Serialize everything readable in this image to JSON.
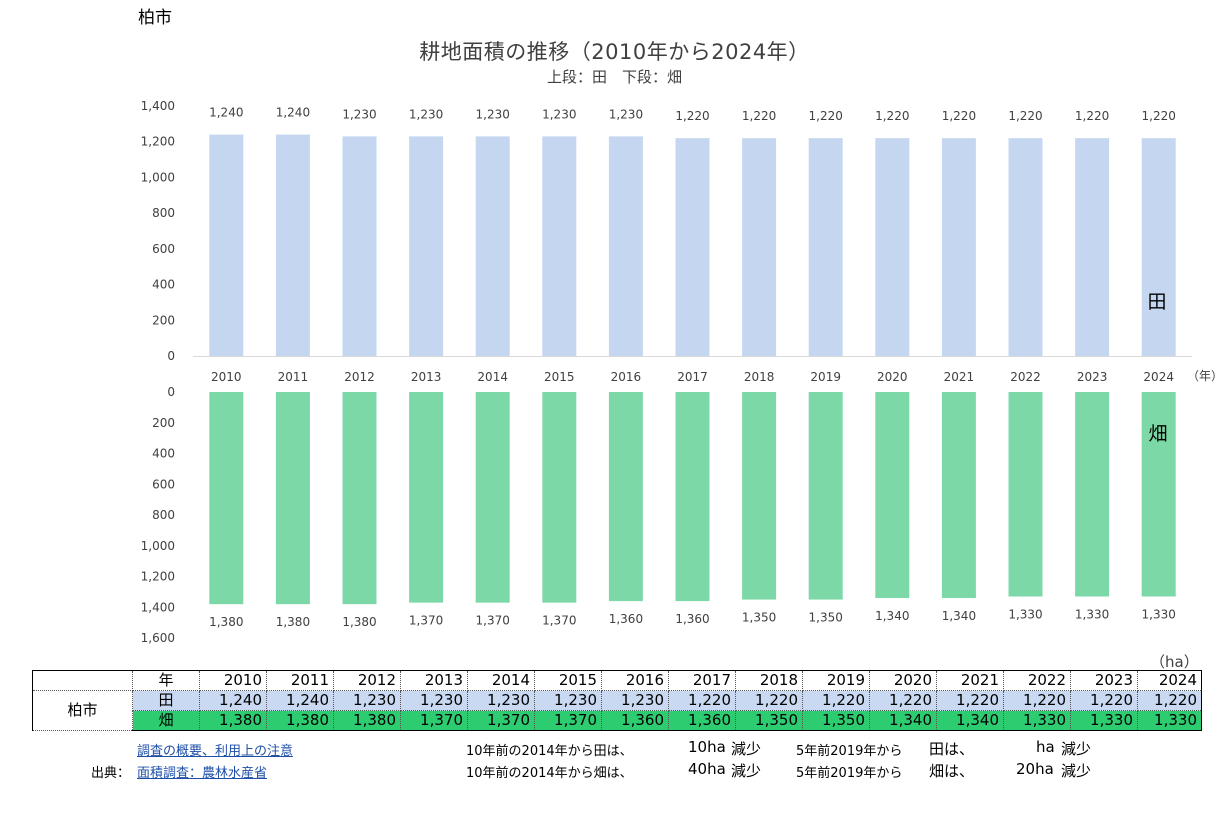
{
  "city": "柏市",
  "unit": "（ha）",
  "chart_data": {
    "type": "bar",
    "title": "耕地面積の推移（2010年から2024年）",
    "subtitle": "上段：田　下段：畑",
    "x_unit": "（年）",
    "categories": [
      "2010",
      "2011",
      "2012",
      "2013",
      "2014",
      "2015",
      "2016",
      "2017",
      "2018",
      "2019",
      "2020",
      "2021",
      "2022",
      "2023",
      "2024"
    ],
    "series": [
      {
        "name": "田",
        "color": "#c5d7f0",
        "ylim": [
          0,
          1400
        ],
        "ticks": [
          0,
          200,
          400,
          600,
          800,
          1000,
          1200,
          1400
        ],
        "values": [
          1240,
          1240,
          1230,
          1230,
          1230,
          1230,
          1230,
          1220,
          1220,
          1220,
          1220,
          1220,
          1220,
          1220,
          1220
        ]
      },
      {
        "name": "畑",
        "color": "#7dd8a8",
        "ylim": [
          0,
          1600
        ],
        "ticks": [
          0,
          200,
          400,
          600,
          800,
          1000,
          1200,
          1400,
          1600
        ],
        "inverted": true,
        "values": [
          1380,
          1380,
          1380,
          1370,
          1370,
          1370,
          1360,
          1360,
          1350,
          1350,
          1340,
          1340,
          1330,
          1330,
          1330
        ]
      }
    ]
  },
  "table": {
    "year_header": "年",
    "row_city": "柏市",
    "paddy_label": "田",
    "upland_label": "畑",
    "years": [
      "2010",
      "2011",
      "2012",
      "2013",
      "2014",
      "2015",
      "2016",
      "2017",
      "2018",
      "2019",
      "2020",
      "2021",
      "2022",
      "2023",
      "2024"
    ],
    "paddy": [
      "1,240",
      "1,240",
      "1,230",
      "1,230",
      "1,230",
      "1,230",
      "1,230",
      "1,220",
      "1,220",
      "1,220",
      "1,220",
      "1,220",
      "1,220",
      "1,220",
      "1,220"
    ],
    "upland": [
      "1,380",
      "1,380",
      "1,380",
      "1,370",
      "1,370",
      "1,370",
      "1,360",
      "1,360",
      "1,350",
      "1,350",
      "1,340",
      "1,340",
      "1,330",
      "1,330",
      "1,330"
    ]
  },
  "notes": {
    "survey_link": "調査の概要、利用上の注意",
    "source_label": "出典：",
    "source_link": "面積調査：農林水産省",
    "line1_a": "10年前の2014年から田は、",
    "line1_b": "10ha",
    "line1_c": "減少",
    "line1_d": "5年前2019年から",
    "line1_e": "田は、",
    "line1_f": "ha",
    "line1_g": "減少",
    "line2_a": "10年前の2014年から畑は、",
    "line2_b": "40ha",
    "line2_c": "減少",
    "line2_d": "5年前2019年から",
    "line2_e": "畑は、",
    "line2_f": "20ha",
    "line2_g": "減少"
  }
}
